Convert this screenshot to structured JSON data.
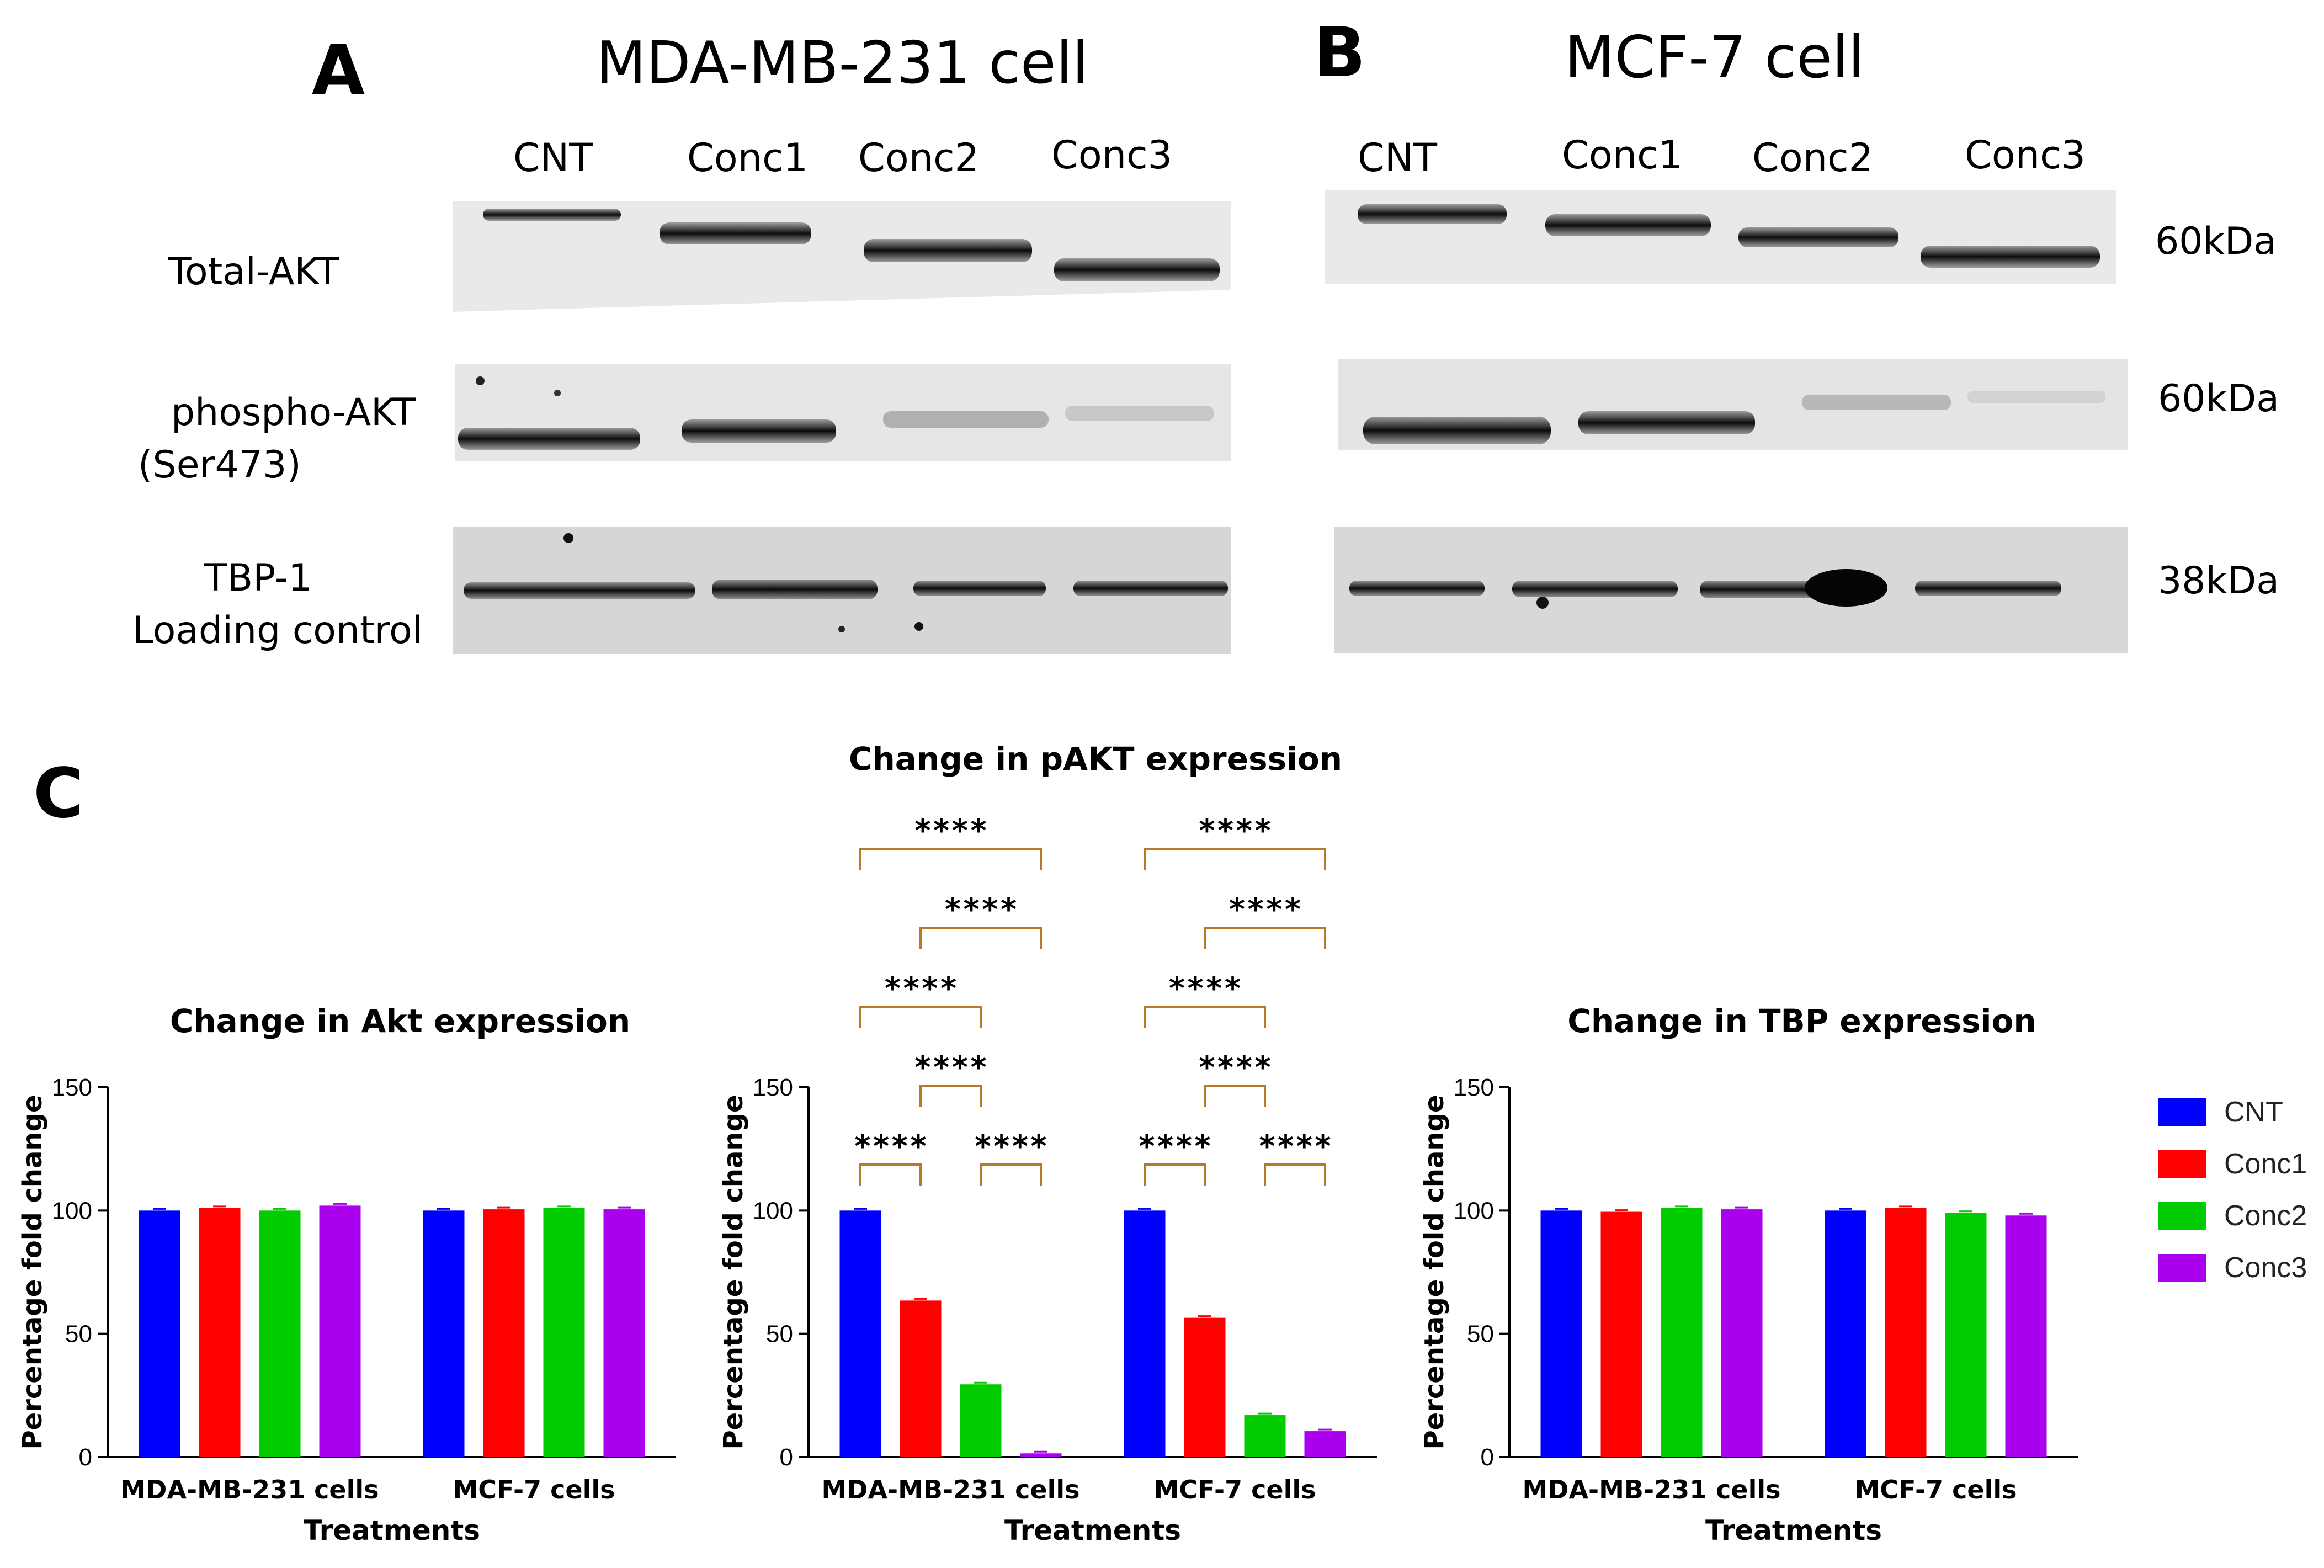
{
  "panels": {
    "a_letter": "A",
    "b_letter": "B",
    "c_letter": "C"
  },
  "blots": [
    {
      "title": "MDA-MB-231 cell",
      "lanes": [
        "CNT",
        "Conc1",
        "Conc2",
        "Conc3"
      ],
      "rows": [
        "Total-AKT",
        "phospho-AKT",
        "(Ser473)",
        "TBP-1",
        "Loading control"
      ]
    },
    {
      "title": "MCF-7 cell",
      "lanes": [
        "CNT",
        "Conc1",
        "Conc2",
        "Conc3"
      ],
      "sizes": [
        "60kDa",
        "60kDa",
        "38kDa"
      ]
    }
  ],
  "legend": [
    {
      "name": "CNT",
      "color": "#0000ff"
    },
    {
      "name": "Conc1",
      "color": "#ff0000"
    },
    {
      "name": "Conc2",
      "color": "#00cc00"
    },
    {
      "name": "Conc3",
      "color": "#aa00ee"
    }
  ],
  "chart_data": [
    {
      "type": "bar",
      "title": "Change in Akt expression",
      "xlabel": "Treatments",
      "ylabel": "Percentage fold change",
      "categories": [
        "MDA-MB-231 cells",
        "MCF-7 cells"
      ],
      "ylim": [
        0,
        150
      ],
      "yticks": [
        "0",
        "50",
        "100",
        "150"
      ],
      "series": [
        {
          "name": "CNT",
          "values": [
            100,
            100
          ]
        },
        {
          "name": "Conc1",
          "values": [
            101,
            100.5
          ]
        },
        {
          "name": "Conc2",
          "values": [
            100,
            101
          ]
        },
        {
          "name": "Conc3",
          "values": [
            102,
            100.5
          ]
        }
      ],
      "significance": []
    },
    {
      "type": "bar",
      "title": "Change in pAKT expression",
      "xlabel": "Treatments",
      "ylabel": "Percentage fold change",
      "categories": [
        "MDA-MB-231 cells",
        "MCF-7 cells"
      ],
      "ylim": [
        0,
        150
      ],
      "yticks": [
        "0",
        "50",
        "100",
        "150"
      ],
      "series": [
        {
          "name": "CNT",
          "values": [
            100,
            100
          ]
        },
        {
          "name": "Conc1",
          "values": [
            63.5,
            56.5
          ]
        },
        {
          "name": "Conc2",
          "values": [
            29.5,
            17
          ]
        },
        {
          "name": "Conc3",
          "values": [
            1.5,
            10.5
          ]
        }
      ],
      "significance": [
        {
          "group": 0,
          "from": 0,
          "to": 1,
          "label": "****"
        },
        {
          "group": 0,
          "from": 2,
          "to": 3,
          "label": "****"
        },
        {
          "group": 0,
          "from": 1,
          "to": 2,
          "label": "****"
        },
        {
          "group": 0,
          "from": 0,
          "to": 2,
          "label": "****"
        },
        {
          "group": 0,
          "from": 1,
          "to": 3,
          "label": "****"
        },
        {
          "group": 0,
          "from": 0,
          "to": 3,
          "label": "****"
        },
        {
          "group": 1,
          "from": 0,
          "to": 1,
          "label": "****"
        },
        {
          "group": 1,
          "from": 2,
          "to": 3,
          "label": "****"
        },
        {
          "group": 1,
          "from": 1,
          "to": 2,
          "label": "****"
        },
        {
          "group": 1,
          "from": 0,
          "to": 2,
          "label": "****"
        },
        {
          "group": 1,
          "from": 1,
          "to": 3,
          "label": "****"
        },
        {
          "group": 1,
          "from": 0,
          "to": 3,
          "label": "****"
        }
      ]
    },
    {
      "type": "bar",
      "title": "Change in TBP expression",
      "xlabel": "Treatments",
      "ylabel": "Percentage fold change",
      "categories": [
        "MDA-MB-231 cells",
        "MCF-7 cells"
      ],
      "ylim": [
        0,
        150
      ],
      "yticks": [
        "0",
        "50",
        "100",
        "150"
      ],
      "series": [
        {
          "name": "CNT",
          "values": [
            100,
            100
          ]
        },
        {
          "name": "Conc1",
          "values": [
            99.5,
            101
          ]
        },
        {
          "name": "Conc2",
          "values": [
            101,
            99
          ]
        },
        {
          "name": "Conc3",
          "values": [
            100.5,
            98
          ]
        }
      ],
      "significance": []
    }
  ]
}
